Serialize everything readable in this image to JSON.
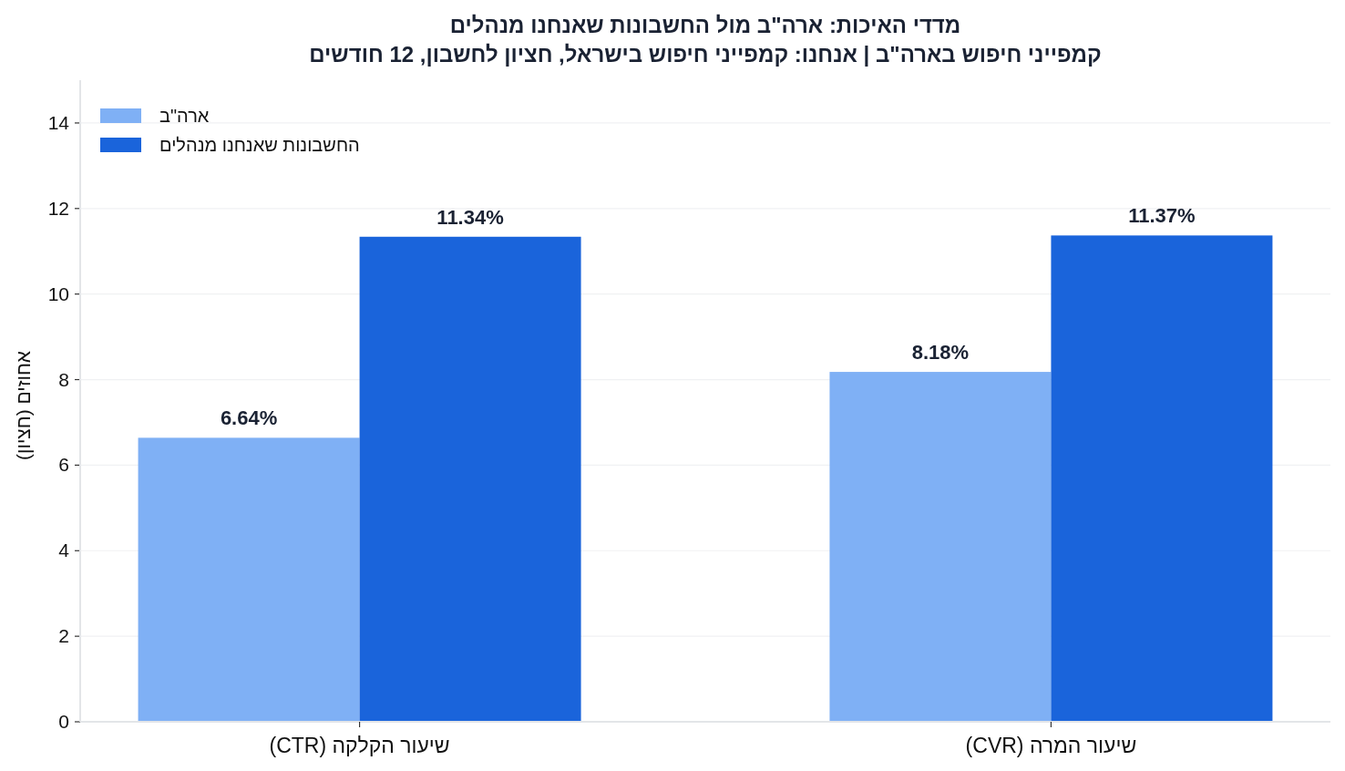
{
  "chart_data": {
    "type": "bar",
    "title": "מדדי האיכות: ארה\"ב מול החשבונות שאנחנו מנהלים",
    "subtitle": "קמפייני חיפוש בארה\"ב | אנחנו: קמפייני חיפוש בישראל, חציון לחשבון, 12 חודשים",
    "ylabel": "אחוזים (חציון)",
    "categories": [
      "שיעור הקלקה (CTR)",
      "שיעור המרה (CVR)"
    ],
    "series": [
      {
        "name": "ארה\"ב",
        "color": "#7fb0f5",
        "values": [
          6.64,
          8.18
        ],
        "value_labels": [
          "6.64%",
          "8.18%"
        ]
      },
      {
        "name": "החשבונות שאנחנו מנהלים",
        "color": "#1a64db",
        "values": [
          11.34,
          11.37
        ],
        "value_labels": [
          "11.34%",
          "11.37%"
        ]
      }
    ],
    "ylim": [
      0,
      15
    ],
    "yticks": [
      0,
      2,
      4,
      6,
      8,
      10,
      12,
      14
    ],
    "grid": "y",
    "legend": "top left"
  }
}
